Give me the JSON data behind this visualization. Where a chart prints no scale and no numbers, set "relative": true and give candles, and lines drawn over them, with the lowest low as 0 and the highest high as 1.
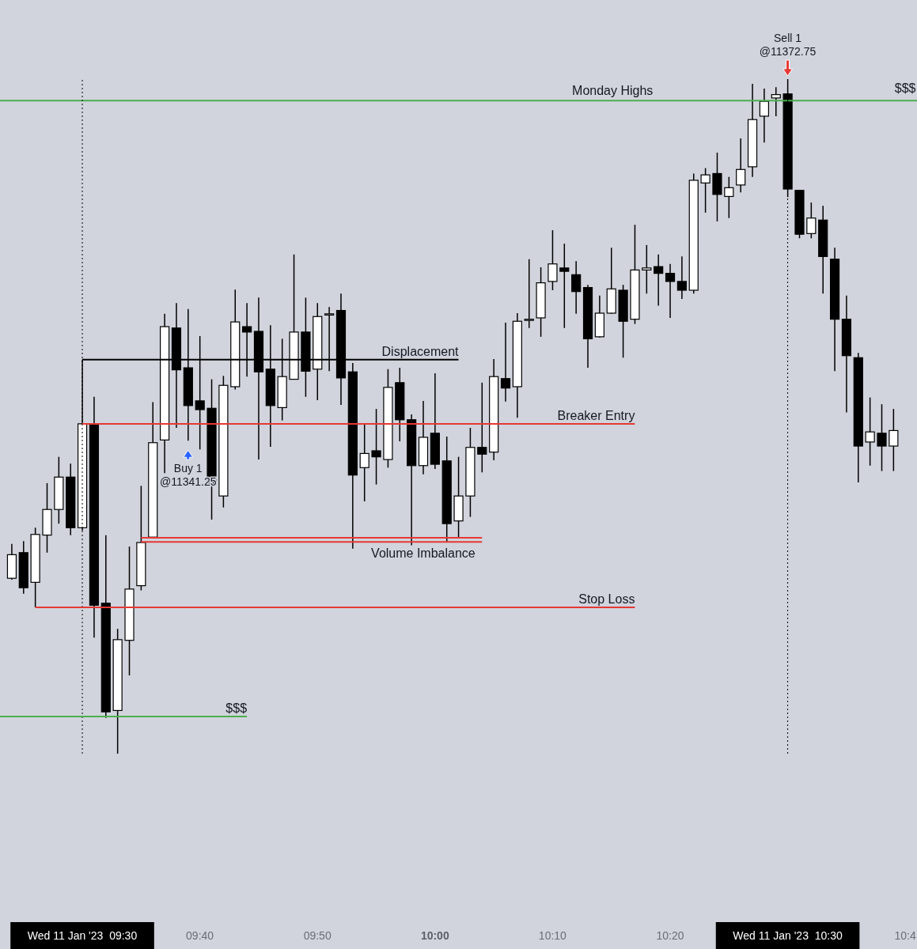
{
  "chart_data": {
    "type": "candlestick",
    "relative": true,
    "color": "#000000",
    "x": [
      "2023-01-11T09:24",
      "2023-01-11T09:25",
      "2023-01-11T09:26",
      "2023-01-11T09:27",
      "2023-01-11T09:28",
      "2023-01-11T09:29",
      "2023-01-11T09:30",
      "2023-01-11T09:31",
      "2023-01-11T09:32",
      "2023-01-11T09:33",
      "2023-01-11T09:34",
      "2023-01-11T09:35",
      "2023-01-11T09:36",
      "2023-01-11T09:37",
      "2023-01-11T09:38",
      "2023-01-11T09:39",
      "2023-01-11T09:40",
      "2023-01-11T09:41",
      "2023-01-11T09:42",
      "2023-01-11T09:43",
      "2023-01-11T09:44",
      "2023-01-11T09:45",
      "2023-01-11T09:46",
      "2023-01-11T09:47",
      "2023-01-11T09:48",
      "2023-01-11T09:49",
      "2023-01-11T09:50",
      "2023-01-11T09:51",
      "2023-01-11T09:52",
      "2023-01-11T09:53",
      "2023-01-11T09:54",
      "2023-01-11T09:55",
      "2023-01-11T09:56",
      "2023-01-11T09:57",
      "2023-01-11T09:58",
      "2023-01-11T09:59",
      "2023-01-11T10:00",
      "2023-01-11T10:01",
      "2023-01-11T10:02",
      "2023-01-11T10:03",
      "2023-01-11T10:04",
      "2023-01-11T10:05",
      "2023-01-11T10:06",
      "2023-01-11T10:07",
      "2023-01-11T10:08",
      "2023-01-11T10:09",
      "2023-01-11T10:10",
      "2023-01-11T10:11",
      "2023-01-11T10:12",
      "2023-01-11T10:13",
      "2023-01-11T10:14",
      "2023-01-11T10:15",
      "2023-01-11T10:16",
      "2023-01-11T10:17",
      "2023-01-11T10:18",
      "2023-01-11T10:19",
      "2023-01-11T10:20",
      "2023-01-11T10:21",
      "2023-01-11T10:22",
      "2023-01-11T10:23",
      "2023-01-11T10:24",
      "2023-01-11T10:25",
      "2023-01-11T10:26",
      "2023-01-11T10:27",
      "2023-01-11T10:28",
      "2023-01-11T10:29",
      "2023-01-11T10:30",
      "2023-01-11T10:31",
      "2023-01-11T10:32",
      "2023-01-11T10:33",
      "2023-01-11T10:34",
      "2023-01-11T10:35",
      "2023-01-11T10:36",
      "2023-01-11T10:37",
      "2023-01-11T10:38",
      "2023-01-11T10:39"
    ],
    "ohlc": [
      [
        0.26,
        0.311,
        0.258,
        0.295
      ],
      [
        0.298,
        0.315,
        0.237,
        0.246
      ],
      [
        0.254,
        0.335,
        0.217,
        0.325
      ],
      [
        0.324,
        0.401,
        0.298,
        0.362
      ],
      [
        0.362,
        0.44,
        0.341,
        0.41
      ],
      [
        0.41,
        0.43,
        0.324,
        0.335
      ],
      [
        0.335,
        0.584,
        0.331,
        0.489
      ],
      [
        0.489,
        0.529,
        0.172,
        0.22
      ],
      [
        0.223,
        0.324,
        0.053,
        0.062
      ],
      [
        0.064,
        0.185,
        0,
        0.169
      ],
      [
        0.168,
        0.307,
        0.116,
        0.244
      ],
      [
        0.249,
        0.397,
        0.242,
        0.313
      ],
      [
        0.321,
        0.521,
        0.321,
        0.461
      ],
      [
        0.465,
        0.652,
        0.416,
        0.633
      ],
      [
        0.631,
        0.668,
        0.483,
        0.569
      ],
      [
        0.572,
        0.659,
        0.464,
        0.516
      ],
      [
        0.523,
        0.619,
        0.451,
        0.51
      ],
      [
        0.512,
        0.555,
        0.347,
        0.399
      ],
      [
        0.382,
        0.56,
        0.365,
        0.546
      ],
      [
        0.544,
        0.688,
        0.54,
        0.64
      ],
      [
        0.633,
        0.668,
        0.559,
        0.625
      ],
      [
        0.626,
        0.676,
        0.436,
        0.566
      ],
      [
        0.57,
        0.635,
        0.455,
        0.516
      ],
      [
        0.513,
        0.615,
        0.494,
        0.559
      ],
      [
        0.555,
        0.74,
        0.555,
        0.625
      ],
      [
        0.625,
        0.676,
        0.529,
        0.567
      ],
      [
        0.57,
        0.668,
        0.524,
        0.648
      ],
      [
        0.652,
        0.662,
        0.567,
        0.652
      ],
      [
        0.657,
        0.682,
        0.517,
        0.557
      ],
      [
        0.566,
        0.579,
        0.304,
        0.413
      ],
      [
        0.424,
        0.49,
        0.374,
        0.445
      ],
      [
        0.449,
        0.511,
        0.399,
        0.44
      ],
      [
        0.436,
        0.57,
        0.424,
        0.543
      ],
      [
        0.55,
        0.572,
        0.463,
        0.495
      ],
      [
        0.495,
        0.503,
        0.309,
        0.427
      ],
      [
        0.427,
        0.523,
        0.414,
        0.469
      ],
      [
        0.475,
        0.564,
        0.422,
        0.429
      ],
      [
        0.434,
        0.47,
        0.314,
        0.341
      ],
      [
        0.345,
        0.44,
        0.32,
        0.382
      ],
      [
        0.382,
        0.483,
        0.351,
        0.454
      ],
      [
        0.454,
        0.55,
        0.417,
        0.444
      ],
      [
        0.447,
        0.585,
        0.435,
        0.559
      ],
      [
        0.556,
        0.639,
        0.522,
        0.542
      ],
      [
        0.544,
        0.653,
        0.498,
        0.641
      ],
      [
        0.644,
        0.733,
        0.631,
        0.644
      ],
      [
        0.646,
        0.721,
        0.618,
        0.698
      ],
      [
        0.7,
        0.776,
        0.687,
        0.726
      ],
      [
        0.72,
        0.756,
        0.631,
        0.715
      ],
      [
        0.71,
        0.73,
        0.652,
        0.685
      ],
      [
        0.691,
        0.695,
        0.572,
        0.615
      ],
      [
        0.618,
        0.679,
        0.617,
        0.653
      ],
      [
        0.653,
        0.75,
        0.652,
        0.689
      ],
      [
        0.687,
        0.695,
        0.587,
        0.641
      ],
      [
        0.644,
        0.784,
        0.637,
        0.717
      ],
      [
        0.717,
        0.754,
        0.682,
        0.72
      ],
      [
        0.722,
        0.74,
        0.664,
        0.712
      ],
      [
        0.712,
        0.726,
        0.646,
        0.7
      ],
      [
        0.7,
        0.737,
        0.674,
        0.687
      ],
      [
        0.687,
        0.86,
        0.682,
        0.85
      ],
      [
        0.846,
        0.868,
        0.802,
        0.858
      ],
      [
        0.86,
        0.891,
        0.789,
        0.829
      ],
      [
        0.826,
        0.855,
        0.794,
        0.839
      ],
      [
        0.843,
        0.912,
        0.832,
        0.866
      ],
      [
        0.87,
        0.993,
        0.855,
        0.94
      ],
      [
        0.945,
        0.986,
        0.906,
        0.967
      ],
      [
        0.972,
        0.988,
        0.945,
        0.977
      ],
      [
        0.978,
        1,
        0.825,
        0.837
      ],
      [
        0.835,
        0.835,
        0.764,
        0.77
      ],
      [
        0.771,
        0.817,
        0.764,
        0.794
      ],
      [
        0.791,
        0.812,
        0.682,
        0.737
      ],
      [
        0.733,
        0.75,
        0.567,
        0.644
      ],
      [
        0.644,
        0.679,
        0.506,
        0.59
      ],
      [
        0.587,
        0.594,
        0.402,
        0.456
      ],
      [
        0.462,
        0.528,
        0.427,
        0.477
      ],
      [
        0.475,
        0.518,
        0.419,
        0.456
      ],
      [
        0.456,
        0.511,
        0.419,
        0.479
      ]
    ],
    "series": [
      {
        "type": "line",
        "name": "Displacement",
        "color": "#000000",
        "x": [
          "2023-01-11T09:30",
          "2023-01-11T10:02"
        ],
        "values": [
          0.584,
          0.584
        ]
      },
      {
        "type": "line",
        "name": "Breaker Entry",
        "color": "#e53935",
        "x": [
          "2023-01-11T09:30",
          "2023-01-11T10:17"
        ],
        "values": [
          0.489,
          0.489
        ]
      },
      {
        "type": "line",
        "color": "#e53935",
        "x": [
          "2023-01-11T09:35",
          "2023-01-11T10:04"
        ],
        "values": [
          0.32,
          0.32
        ]
      },
      {
        "type": "line",
        "color": "#e53935",
        "x": [
          "2023-01-11T09:35",
          "2023-01-11T10:04"
        ],
        "values": [
          0.314,
          0.314
        ]
      },
      {
        "type": "line",
        "name": "Stop Loss",
        "color": "#e53935",
        "x": [
          "2023-01-11T09:26",
          "2023-01-11T10:17"
        ],
        "values": [
          0.217,
          0.217
        ]
      },
      {
        "type": "line",
        "name": "$$$",
        "color": "#4caf50",
        "x": [
          "2023-01-11T09:23",
          "2023-01-11T09:44"
        ],
        "values": [
          0.055,
          0.055
        ]
      }
    ],
    "ref_lines": [
      {
        "axis": "y",
        "value": 0.968,
        "label": "Monday Highs",
        "color": "#4caf50"
      },
      {
        "axis": "x",
        "value": "2023-01-11T09:30",
        "color": "#000000",
        "line_style": "dotted"
      },
      {
        "axis": "x",
        "value": "2023-01-11T10:30",
        "color": "#000000",
        "line_style": "dotted"
      }
    ],
    "annotations": [
      {
        "text": "Buy 1\n@11341.25",
        "x": "2023-01-11T09:39",
        "y": 0.464
      },
      {
        "text": "Sell 1\n@11372.75",
        "x": "2023-01-11T10:30",
        "y": 1
      },
      {
        "text": "Volume Imbalance",
        "x": "2023-01-11T09:59",
        "y": 0.314
      },
      {
        "text": "$$$",
        "x": "2023-01-11T10:40",
        "y": 0.968
      }
    ],
    "xlim": [
      "2023-01-11T09:23",
      "2023-01-11T10:41"
    ],
    "xticks": [
      {
        "value": "2023-01-11T09:30",
        "label": "Wed 11 Jan '23  09:30"
      },
      {
        "value": "2023-01-11T09:40",
        "label": "09:40"
      },
      {
        "value": "2023-01-11T09:50",
        "label": "09:50"
      },
      {
        "value": "2023-01-11T10:00",
        "label": "10:00"
      },
      {
        "value": "2023-01-11T10:10",
        "label": "10:10"
      },
      {
        "value": "2023-01-11T10:20",
        "label": "10:20"
      },
      {
        "value": "2023-01-11T10:30",
        "label": "Wed 11 Jan '23  10:30"
      },
      {
        "value": "2023-01-11T10:40",
        "label": "10:4"
      }
    ]
  }
}
